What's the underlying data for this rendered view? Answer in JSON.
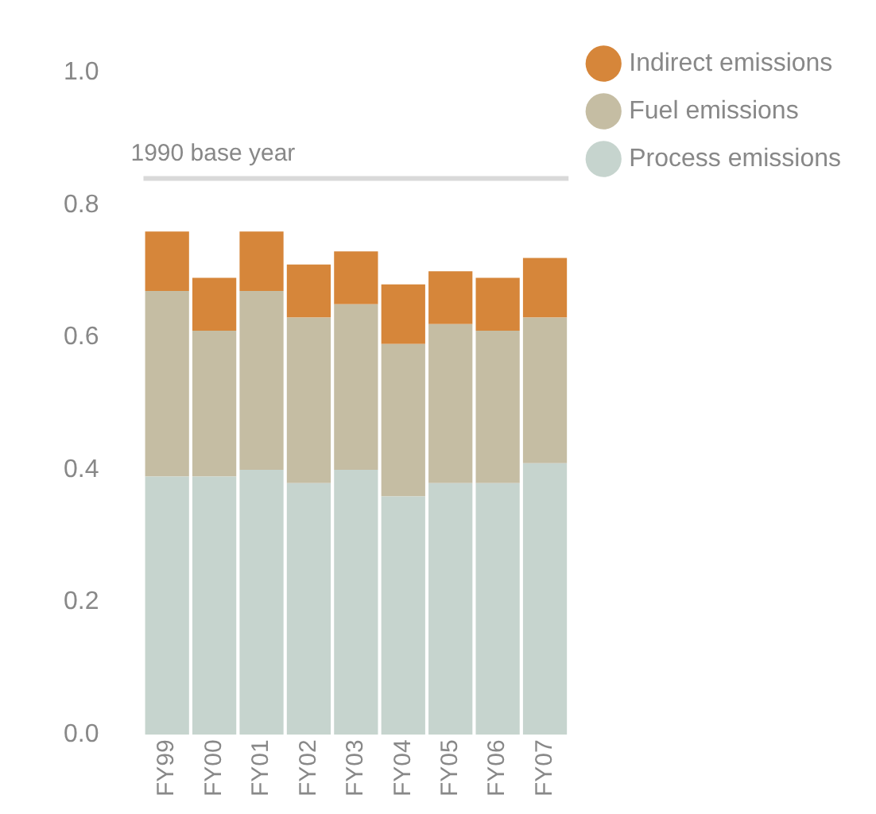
{
  "chart_data": {
    "type": "bar",
    "stacked": true,
    "categories": [
      "FY99",
      "FY00",
      "FY01",
      "FY02",
      "FY03",
      "FY04",
      "FY05",
      "FY06",
      "FY07"
    ],
    "series": [
      {
        "name": "Process emissions",
        "color": "#c6d4ce",
        "values": [
          0.39,
          0.39,
          0.4,
          0.38,
          0.4,
          0.36,
          0.38,
          0.38,
          0.41
        ]
      },
      {
        "name": "Fuel emissions",
        "color": "#c5bda3",
        "values": [
          0.28,
          0.22,
          0.27,
          0.25,
          0.25,
          0.23,
          0.24,
          0.23,
          0.22
        ]
      },
      {
        "name": "Indirect emissions",
        "color": "#d6863a",
        "values": [
          0.09,
          0.08,
          0.09,
          0.08,
          0.08,
          0.09,
          0.08,
          0.08,
          0.09
        ]
      }
    ],
    "ylim": [
      0,
      1
    ],
    "yticks": [
      {
        "value": 0,
        "label": "0.0"
      },
      {
        "value": 0.2,
        "label": "0.2"
      },
      {
        "value": 0.4,
        "label": "0.4"
      },
      {
        "value": 0.6,
        "label": "0.6"
      },
      {
        "value": 0.8,
        "label": "0.8"
      },
      {
        "value": 1,
        "label": "1.0"
      }
    ],
    "ref_lines": [
      {
        "axis": "y",
        "value": 0.84,
        "label": "1990 base year",
        "color": "#d9d9d9"
      }
    ],
    "grid": false,
    "legend": "right"
  }
}
